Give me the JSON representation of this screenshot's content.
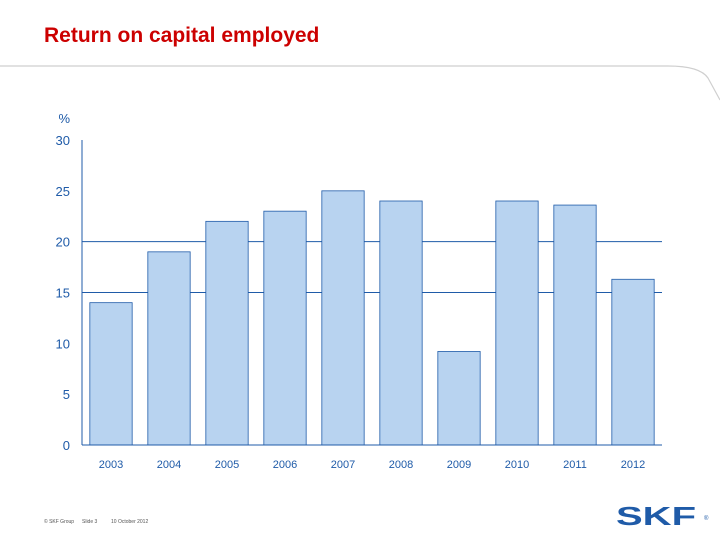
{
  "slide": {
    "title": "Return on capital employed"
  },
  "footer": {
    "copyright": "© SKF Group",
    "slide_label": "Slide 3",
    "date": "10 October 2012"
  },
  "logo": {
    "text": "SKF",
    "mark": "®",
    "color": "#1f5ba8"
  },
  "colors": {
    "title": "#cc0000",
    "bar_fill": "#b8d3f0",
    "bar_stroke": "#1f5ba8",
    "axis": "#1f5ba8",
    "tick_label": "#1f5ba8"
  },
  "chart_data": {
    "type": "bar",
    "title": "",
    "xlabel": "",
    "ylabel": "%",
    "categories": [
      "2003",
      "2004",
      "2005",
      "2006",
      "2007",
      "2008",
      "2009",
      "2010",
      "2011",
      "2012"
    ],
    "values": [
      14,
      19,
      22,
      23,
      25,
      24,
      9.2,
      24,
      23.6,
      16.3
    ],
    "ylim": [
      0,
      30
    ],
    "yticks": [
      0,
      5,
      10,
      15,
      20,
      25,
      30
    ],
    "grid": "horizontal lines at 15 and 20",
    "gridlines": [
      15,
      20
    ],
    "legend": "none"
  }
}
